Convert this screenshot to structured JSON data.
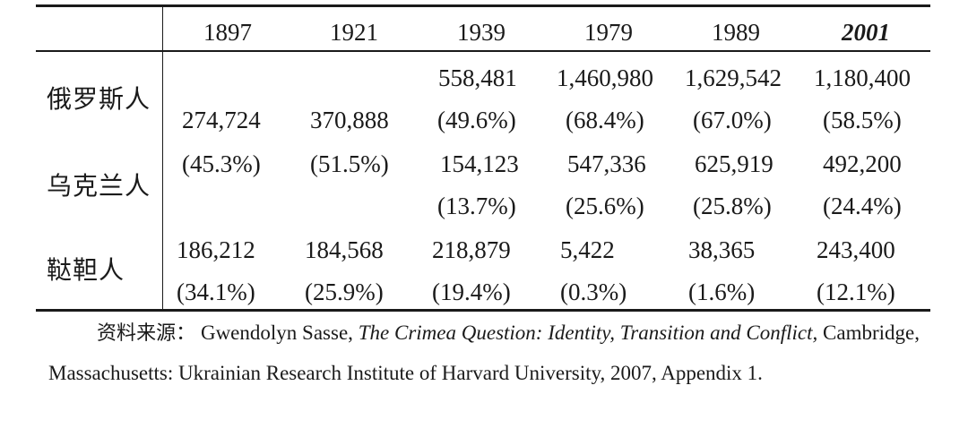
{
  "table": {
    "years": [
      "1897",
      "1921",
      "1939",
      "1979",
      "1989",
      "2001"
    ],
    "groups": [
      {
        "label": "俄罗斯人",
        "values": [
          "274,724",
          "370,888",
          "558,481",
          "1,460,980",
          "1,629,542",
          "1,180,400"
        ],
        "shares": [
          "(45.3%)",
          "(51.5%)",
          "(49.6%)",
          "(68.4%)",
          "(67.0%)",
          "(58.5%)"
        ]
      },
      {
        "label": "乌克兰人",
        "values": [
          "",
          "",
          "154,123",
          "547,336",
          "625,919",
          "492,200"
        ],
        "shares": [
          "",
          "",
          "(13.7%)",
          "(25.6%)",
          "(25.8%)",
          "(24.4%)"
        ]
      },
      {
        "label": "鞑靼人",
        "values": [
          "186,212",
          "184,568",
          "218,879",
          "5,422",
          "38,365",
          "243,400"
        ],
        "shares": [
          "(34.1%)",
          "(25.9%)",
          "(19.4%)",
          "(0.3%)",
          "(1.6%)",
          "(12.1%)"
        ]
      }
    ]
  },
  "source": {
    "label": "资料来源：",
    "author": "Gwendolyn Sasse,",
    "title": "The Crimea Question: Identity, Transition and Conflict,",
    "rest": "Cambridge, Massachusetts: Ukrainian Research Institute of Harvard University, 2007, Appendix 1."
  }
}
